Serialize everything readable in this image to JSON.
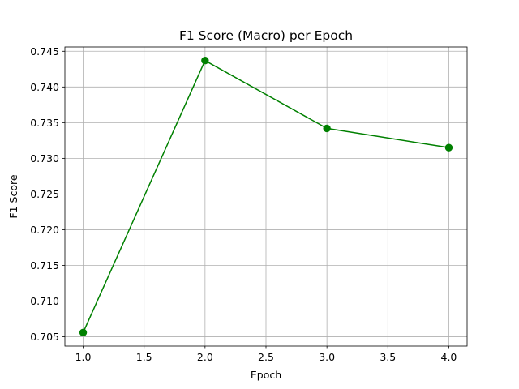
{
  "chart_data": {
    "type": "line",
    "title": "F1 Score (Macro) per Epoch",
    "xlabel": "Epoch",
    "ylabel": "F1 Score",
    "xlim": [
      0.85,
      4.15
    ],
    "ylim": [
      0.7037,
      0.7456
    ],
    "xticks": [
      1.0,
      1.5,
      2.0,
      2.5,
      3.0,
      3.5,
      4.0
    ],
    "xtick_labels": [
      "1.0",
      "1.5",
      "2.0",
      "2.5",
      "3.0",
      "3.5",
      "4.0"
    ],
    "yticks": [
      0.705,
      0.71,
      0.715,
      0.72,
      0.725,
      0.73,
      0.735,
      0.74,
      0.745
    ],
    "ytick_labels": [
      "0.705",
      "0.710",
      "0.715",
      "0.720",
      "0.725",
      "0.730",
      "0.735",
      "0.740",
      "0.745"
    ],
    "grid": true,
    "series": [
      {
        "color": "#008000",
        "marker": "circle",
        "x": [
          1,
          2,
          3,
          4
        ],
        "y": [
          0.7056,
          0.7437,
          0.7342,
          0.7315
        ]
      }
    ]
  }
}
